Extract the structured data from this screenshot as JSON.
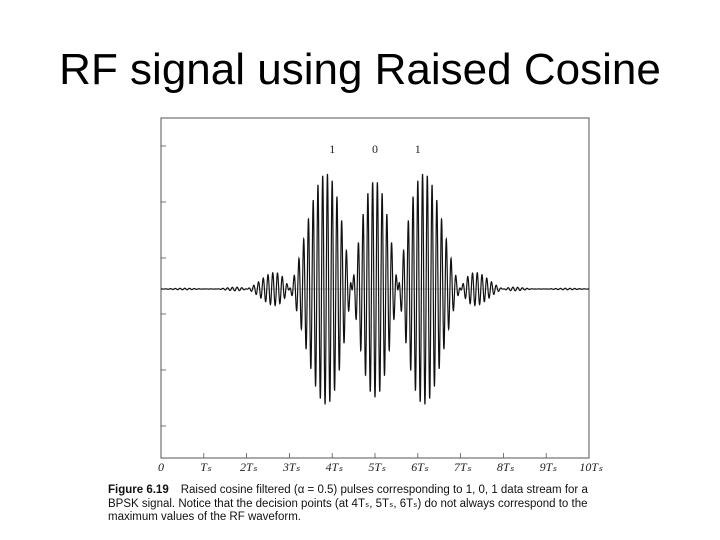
{
  "slide": {
    "title": "RF signal using Raised Cosine"
  },
  "caption": {
    "figure_number": "Figure 6.19",
    "line1": "Raised cosine filtered (α = 0.5) pulses corresponding to 1, 0, 1 data stream for a",
    "line2": "BPSK signal. Notice that the decision points (at 4Tₛ, 5Tₛ, 6Tₛ) do not always correspond to the",
    "line3": "maximum values of the RF waveform."
  },
  "chart_data": {
    "type": "line",
    "title": "",
    "xlabel": "",
    "ylabel": "",
    "x_ticks": [
      "0",
      "Tₛ",
      "2Tₛ",
      "3Tₛ",
      "4Tₛ",
      "5Tₛ",
      "6Tₛ",
      "7Tₛ",
      "8Tₛ",
      "9Tₛ",
      "10Tₛ"
    ],
    "xlim": [
      0,
      10
    ],
    "ylim": [
      -1.2,
      1.2
    ],
    "grid": false,
    "bit_labels": [
      {
        "label": "1",
        "x": 4
      },
      {
        "label": "0",
        "x": 5
      },
      {
        "label": "1",
        "x": 6
      }
    ],
    "series": [
      {
        "bits": [
          1,
          -1,
          1
        ],
        "symbol_times": [
          4,
          5,
          6
        ],
        "rolloff_alpha": 0.5,
        "carrier_cycles_per_symbol": 9,
        "line_color": "#111111"
      }
    ]
  }
}
